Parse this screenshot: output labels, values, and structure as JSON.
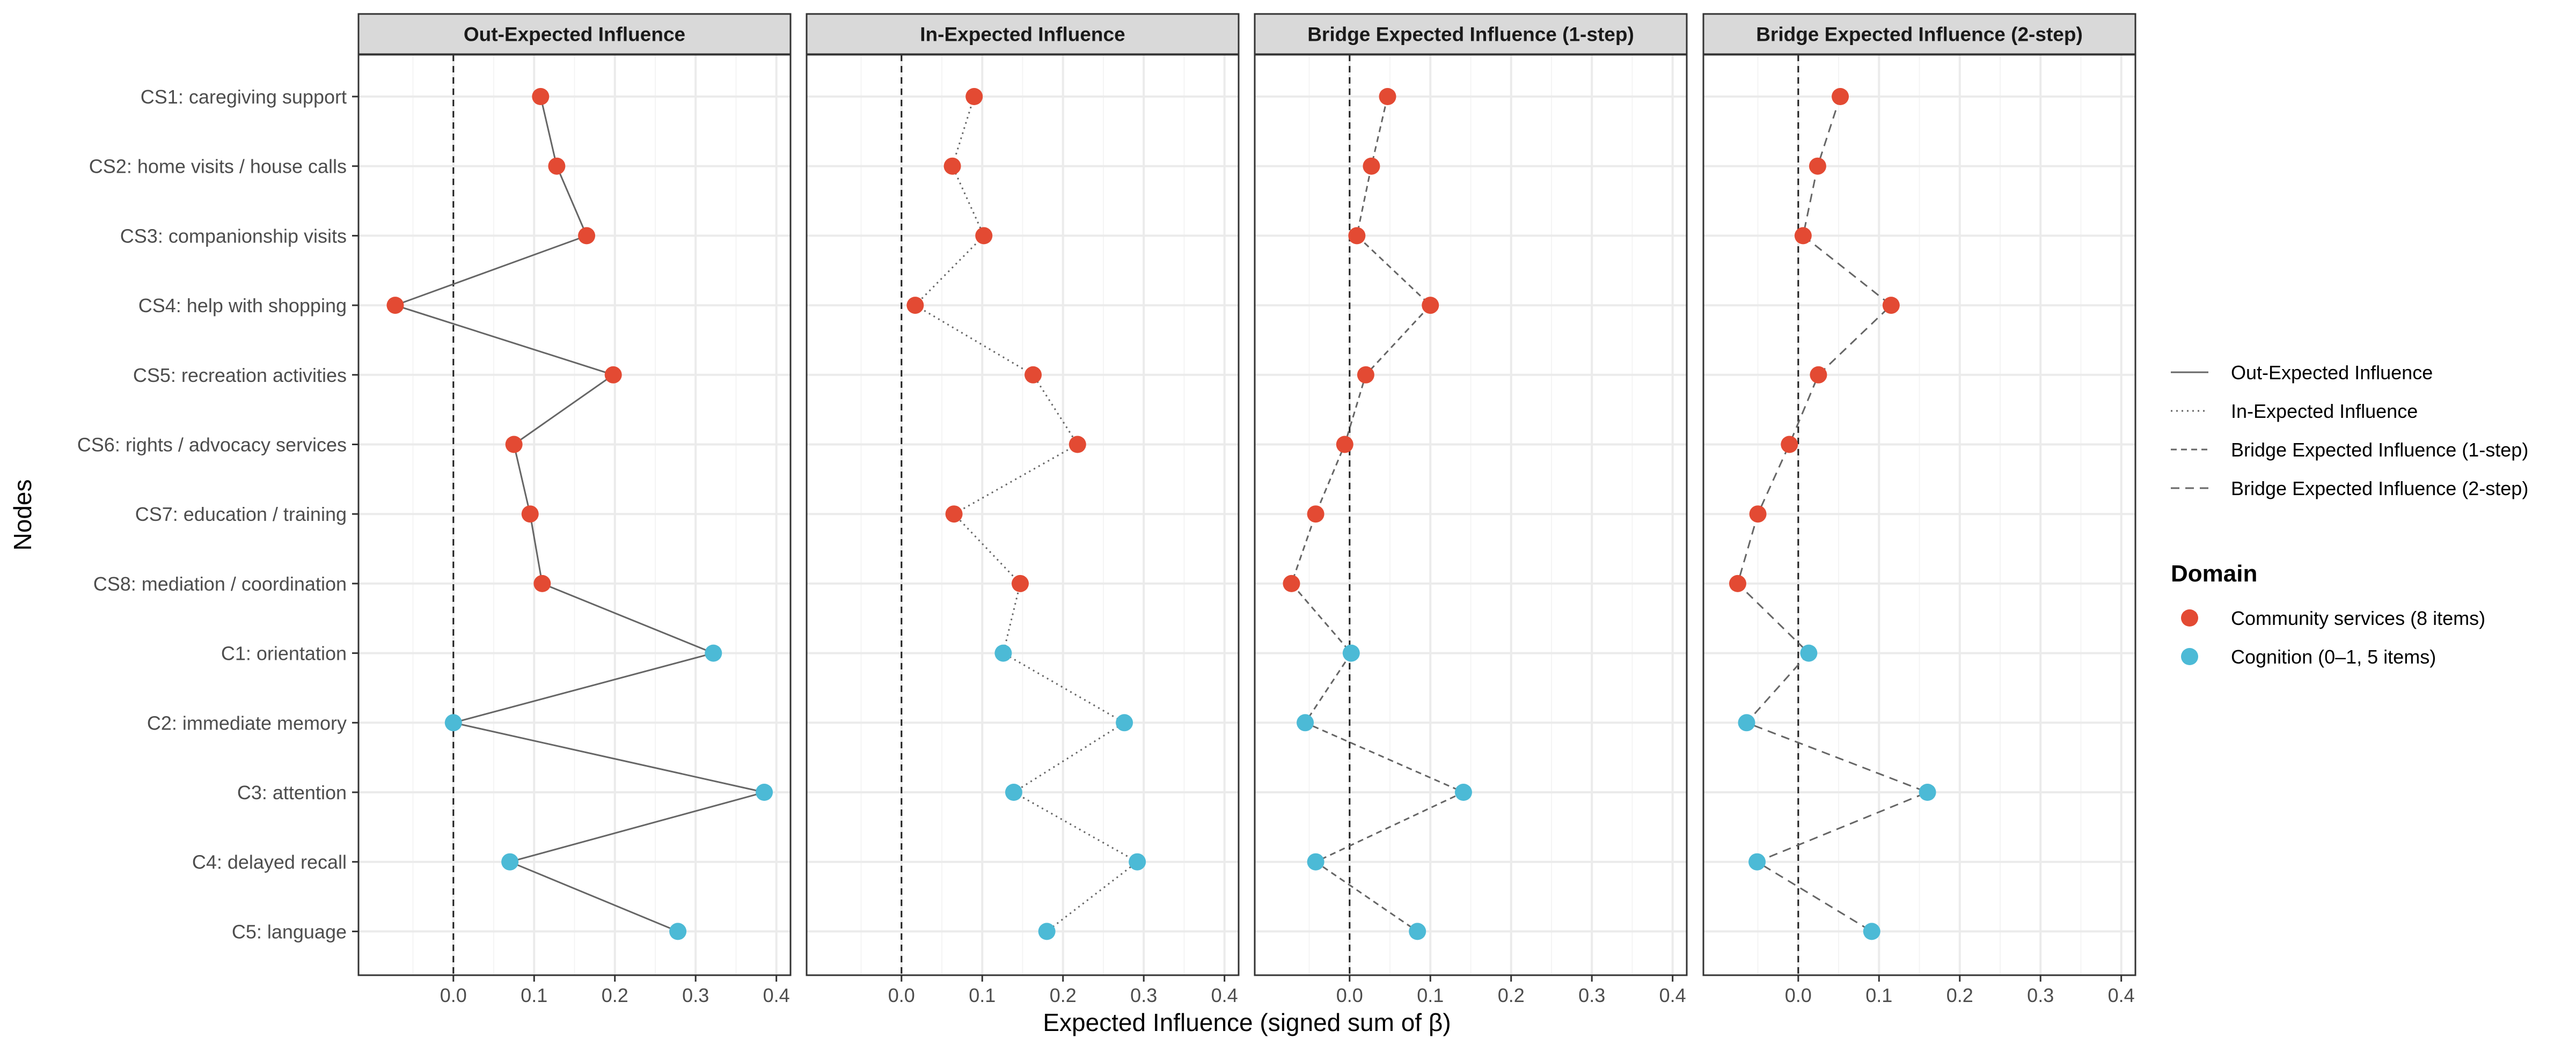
{
  "chart_data": {
    "type": "scatter",
    "panels": [
      {
        "title": "Out-Expected Influence",
        "line_style": "solid"
      },
      {
        "title": "In-Expected Influence",
        "line_style": "dotted"
      },
      {
        "title": "Bridge Expected Influence (1-step)",
        "line_style": "dashed"
      },
      {
        "title": "Bridge Expected Influence (2-step)",
        "line_style": "longdash"
      }
    ],
    "nodes": [
      {
        "label": "CS1: caregiving support",
        "domain": "community"
      },
      {
        "label": "CS2: home visits / house calls",
        "domain": "community"
      },
      {
        "label": "CS3: companionship visits",
        "domain": "community"
      },
      {
        "label": "CS4: help with shopping",
        "domain": "community"
      },
      {
        "label": "CS5: recreation activities",
        "domain": "community"
      },
      {
        "label": "CS6: rights / advocacy services",
        "domain": "community"
      },
      {
        "label": "CS7: education / training",
        "domain": "community"
      },
      {
        "label": "CS8: mediation / coordination",
        "domain": "community"
      },
      {
        "label": "C1: orientation",
        "domain": "cognition"
      },
      {
        "label": "C2: immediate memory",
        "domain": "cognition"
      },
      {
        "label": "C3: attention",
        "domain": "cognition"
      },
      {
        "label": "C4: delayed recall",
        "domain": "cognition"
      },
      {
        "label": "C5: language",
        "domain": "cognition"
      }
    ],
    "series": [
      {
        "name": "Out-Expected Influence",
        "values": [
          0.108,
          0.128,
          0.165,
          -0.072,
          0.198,
          0.075,
          0.095,
          0.11,
          0.322,
          0.0,
          0.385,
          0.07,
          0.278
        ]
      },
      {
        "name": "In-Expected Influence",
        "values": [
          0.09,
          0.063,
          0.102,
          0.017,
          0.163,
          0.218,
          0.065,
          0.147,
          0.126,
          0.276,
          0.139,
          0.292,
          0.18
        ]
      },
      {
        "name": "Bridge Expected Influence (1-step)",
        "values": [
          0.047,
          0.027,
          0.009,
          0.1,
          0.02,
          -0.006,
          -0.042,
          -0.072,
          0.002,
          -0.055,
          0.141,
          -0.042,
          0.084
        ]
      },
      {
        "name": "Bridge Expected Influence (2-step)",
        "values": [
          0.052,
          0.024,
          0.006,
          0.115,
          0.025,
          -0.011,
          -0.05,
          -0.075,
          0.013,
          -0.064,
          0.16,
          -0.051,
          0.091
        ]
      }
    ],
    "xlabel": "Expected Influence (signed sum of β)",
    "ylabel": "Nodes",
    "xlim": [
      -0.1,
      0.4
    ],
    "x_ticks": [
      0.0,
      0.1,
      0.2,
      0.3,
      0.4
    ],
    "x_tick_labels": [
      "0.0",
      "0.1",
      "0.2",
      "0.3",
      "0.4"
    ],
    "zero_reference_line": "dashed",
    "grid": true,
    "legend_position": "right",
    "legend_lines": [
      {
        "label": "Out-Expected Influence",
        "style": "solid"
      },
      {
        "label": "In-Expected Influence",
        "style": "dotted"
      },
      {
        "label": "Bridge Expected Influence (1-step)",
        "style": "dashed"
      },
      {
        "label": "Bridge Expected Influence (2-step)",
        "style": "longdash"
      }
    ],
    "legend_domain": {
      "title": "Domain",
      "items": [
        {
          "key": "community",
          "label": "Community services (8 items)",
          "color": "#e34a33"
        },
        {
          "key": "cognition",
          "label": "Cognition (0–1, 5 items)",
          "color": "#4cbad6"
        }
      ]
    },
    "line_color": "#666666"
  }
}
